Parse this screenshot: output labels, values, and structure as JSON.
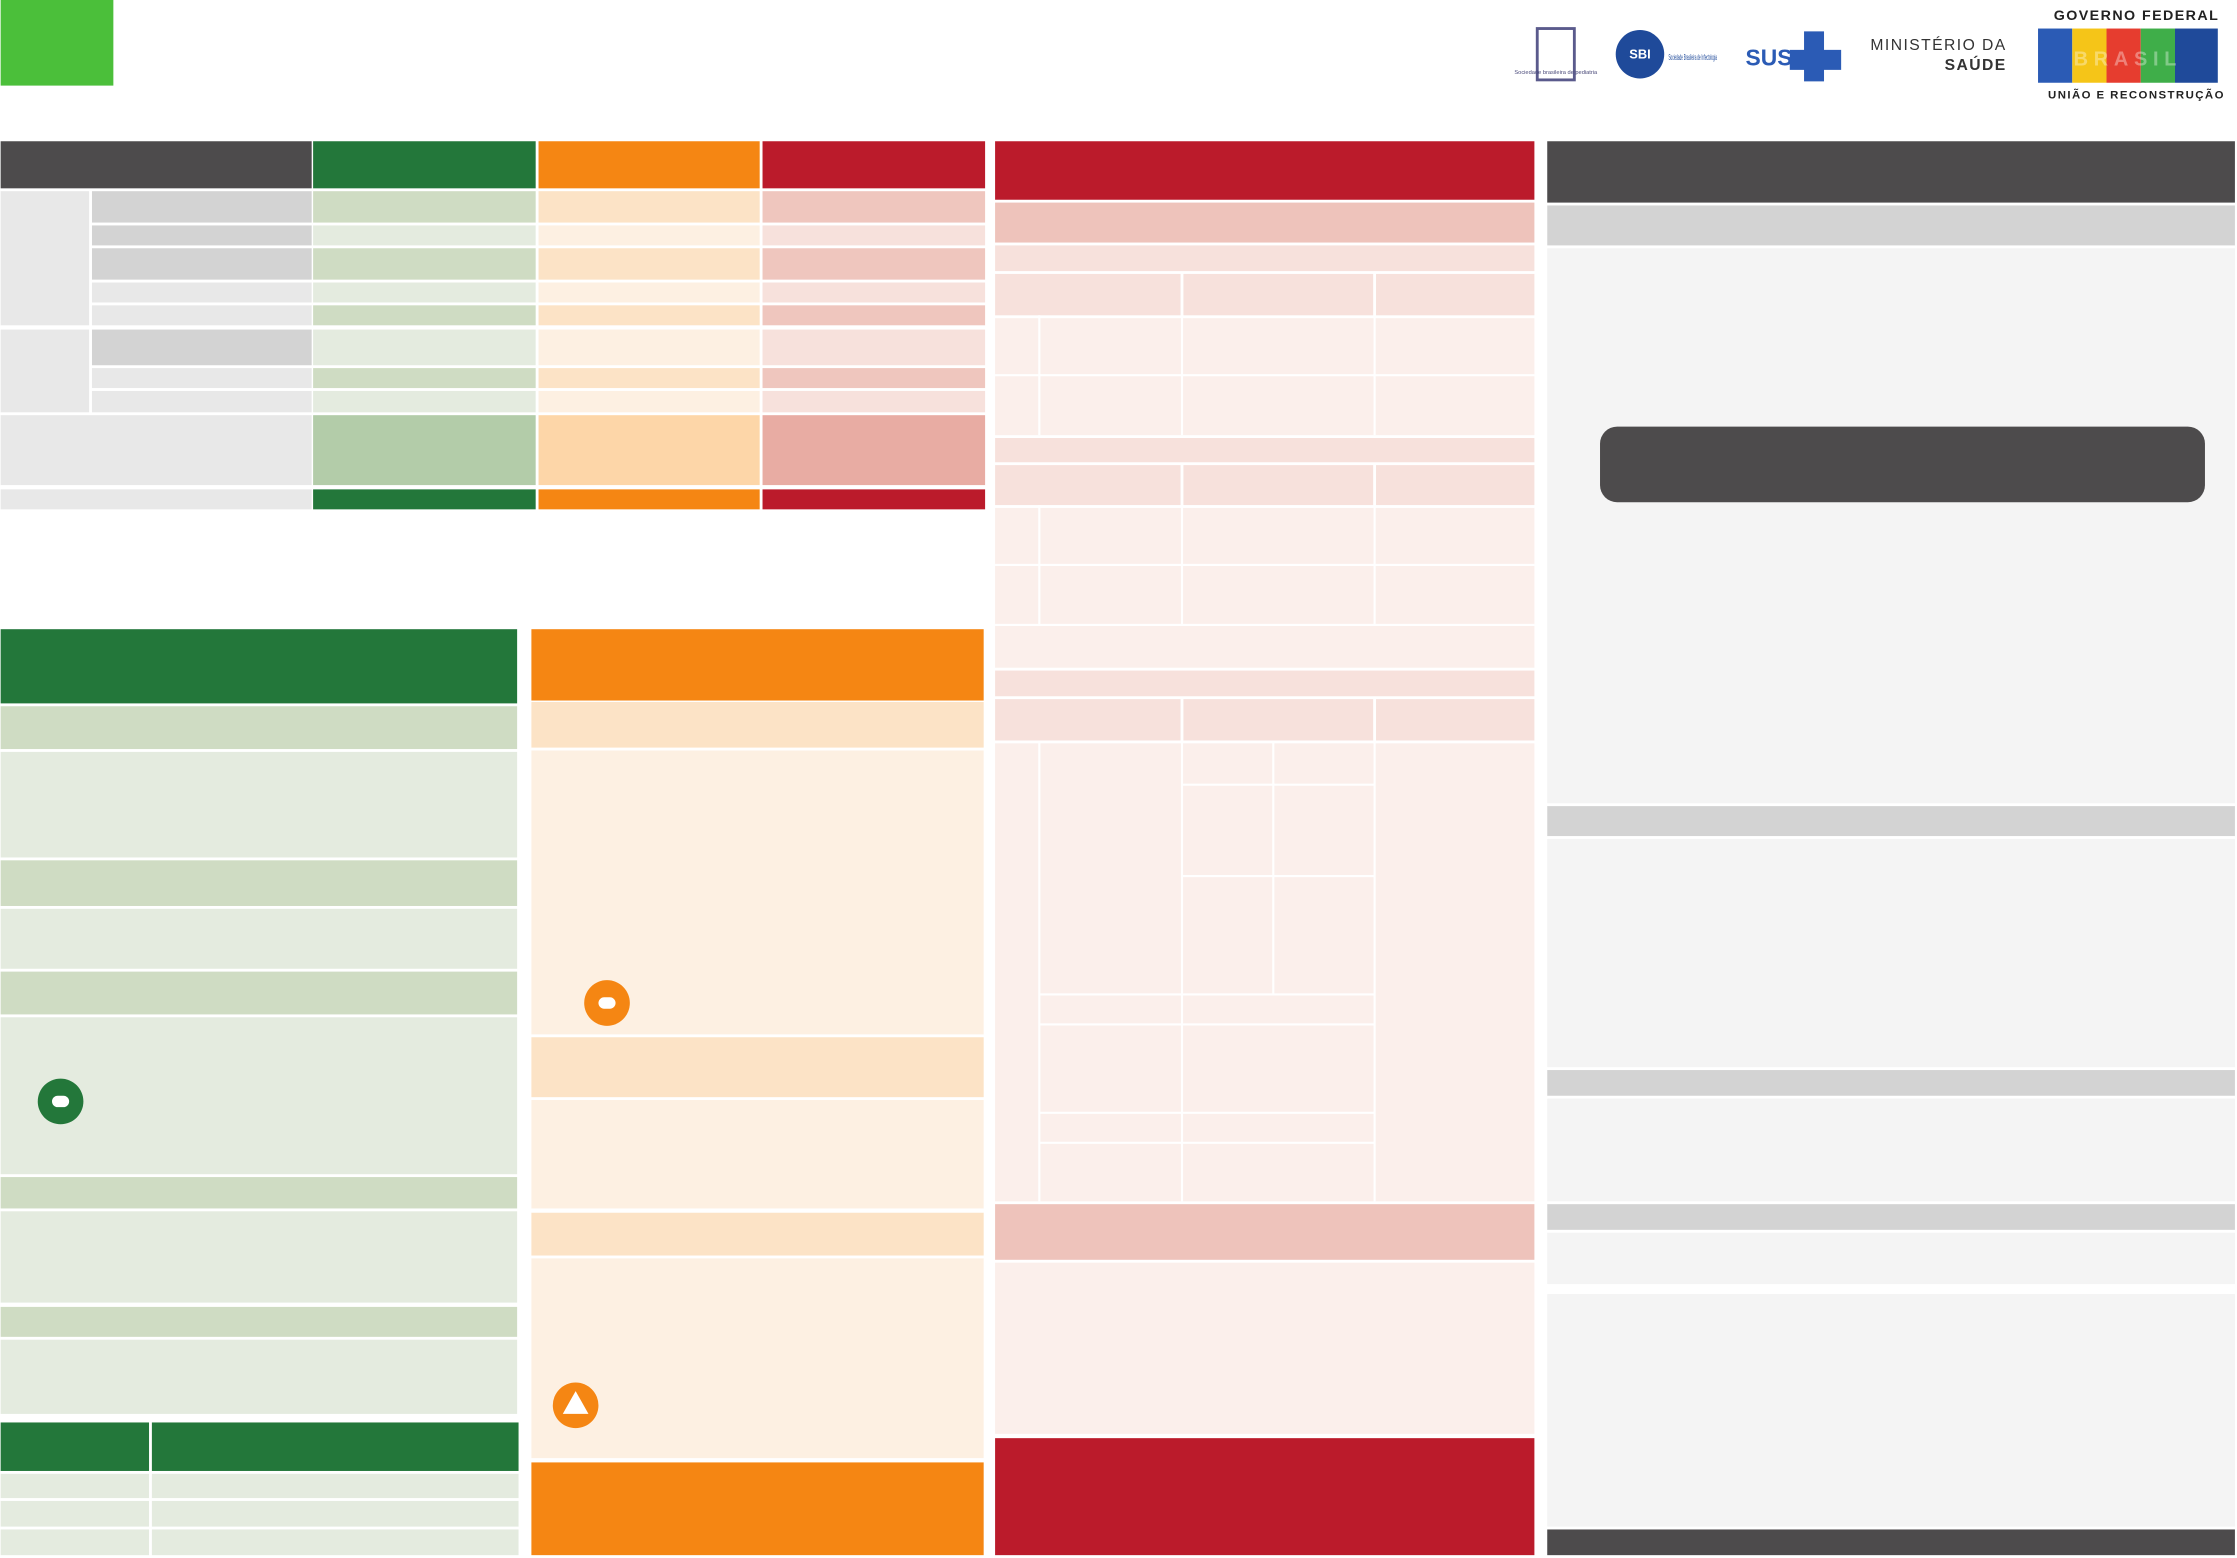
{
  "header": {
    "logos": {
      "sbp": "Sociedade brasileira de pediatria",
      "sbi_mark": "SBI",
      "sbi": "Sociedade Brasileira de Infectologia",
      "sus": "SUS",
      "ministerio": "MINISTÉRIO DA",
      "saude": "SAÚDE",
      "governo": "GOVERNO FEDERAL",
      "brasil": "BRASIL",
      "uniao": "UNIÃO E RECONSTRUÇÃO"
    }
  }
}
